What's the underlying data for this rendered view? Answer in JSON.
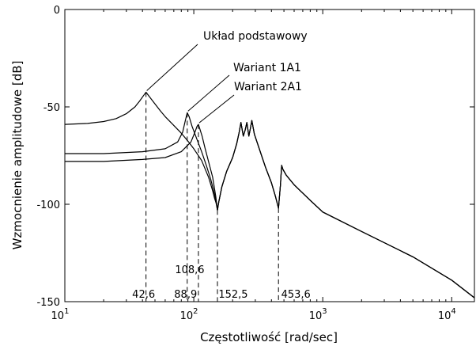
{
  "chart_data": {
    "type": "line",
    "xlabel": "Częstotliwość  [rad/sec]",
    "ylabel": "Wzmocnienie amplitudowe [dB]",
    "xscale": "log",
    "xlim": [
      10,
      15000
    ],
    "ylim": [
      -150,
      0
    ],
    "x_ticks": [
      {
        "value": 10,
        "base": "10",
        "exp": "1"
      },
      {
        "value": 100,
        "base": "10",
        "exp": "2"
      },
      {
        "value": 1000,
        "base": "10",
        "exp": "3"
      },
      {
        "value": 10000,
        "base": "10",
        "exp": "4"
      }
    ],
    "y_ticks": [
      {
        "value": 0,
        "label": "0"
      },
      {
        "value": -50,
        "label": "-50"
      },
      {
        "value": -100,
        "label": "-100"
      },
      {
        "value": -150,
        "label": "-150"
      }
    ],
    "series": [
      {
        "name": "Układ podstawowy",
        "points": [
          [
            10,
            -59
          ],
          [
            15,
            -58.5
          ],
          [
            20,
            -57.5
          ],
          [
            25,
            -56
          ],
          [
            30,
            -53.5
          ],
          [
            35,
            -50
          ],
          [
            38,
            -47
          ],
          [
            41,
            -44
          ],
          [
            42.6,
            -42.5
          ],
          [
            45,
            -44.5
          ],
          [
            50,
            -48.5
          ],
          [
            55,
            -52
          ],
          [
            60,
            -55
          ],
          [
            70,
            -59.5
          ],
          [
            80,
            -63.5
          ],
          [
            90,
            -67.5
          ],
          [
            100,
            -71.5
          ],
          [
            115,
            -77.5
          ],
          [
            130,
            -86
          ],
          [
            140,
            -93
          ],
          [
            145,
            -97
          ],
          [
            150,
            -100
          ],
          [
            152.5,
            -103
          ],
          [
            156,
            -99
          ],
          [
            165,
            -91
          ],
          [
            180,
            -83
          ],
          [
            200,
            -76
          ],
          [
            215,
            -69
          ],
          [
            225,
            -63
          ],
          [
            232,
            -58
          ],
          [
            242,
            -65
          ],
          [
            250,
            -62
          ],
          [
            258,
            -58
          ],
          [
            267,
            -65
          ],
          [
            275,
            -61
          ],
          [
            282,
            -57
          ],
          [
            295,
            -64
          ],
          [
            320,
            -71
          ],
          [
            360,
            -81
          ],
          [
            400,
            -89
          ],
          [
            430,
            -96
          ],
          [
            453.6,
            -102
          ],
          [
            470,
            -90
          ],
          [
            480,
            -80
          ],
          [
            490,
            -82
          ],
          [
            520,
            -85
          ],
          [
            600,
            -90
          ],
          [
            800,
            -98
          ],
          [
            1000,
            -104
          ],
          [
            2000,
            -114
          ],
          [
            5000,
            -127
          ],
          [
            10000,
            -139
          ],
          [
            15000,
            -148
          ]
        ]
      },
      {
        "name": "Wariant 1A1",
        "points": [
          [
            10,
            -74
          ],
          [
            20,
            -74
          ],
          [
            40,
            -73
          ],
          [
            60,
            -71.5
          ],
          [
            75,
            -68
          ],
          [
            82,
            -63
          ],
          [
            86,
            -57
          ],
          [
            88.9,
            -53
          ],
          [
            92,
            -55
          ],
          [
            97,
            -60
          ],
          [
            105,
            -66
          ],
          [
            115,
            -73
          ],
          [
            125,
            -80
          ],
          [
            135,
            -87
          ],
          [
            145,
            -95
          ],
          [
            152.5,
            -103
          ],
          [
            156,
            -99
          ],
          [
            165,
            -91
          ],
          [
            180,
            -83
          ],
          [
            200,
            -76
          ],
          [
            215,
            -69
          ],
          [
            225,
            -63
          ],
          [
            232,
            -58
          ],
          [
            242,
            -65
          ],
          [
            250,
            -62
          ],
          [
            258,
            -58
          ],
          [
            267,
            -65
          ],
          [
            275,
            -61
          ],
          [
            282,
            -57
          ],
          [
            295,
            -64
          ],
          [
            320,
            -71
          ],
          [
            360,
            -81
          ],
          [
            400,
            -89
          ],
          [
            430,
            -96
          ],
          [
            453.6,
            -102
          ],
          [
            470,
            -90
          ],
          [
            480,
            -80
          ],
          [
            490,
            -82
          ],
          [
            520,
            -85
          ],
          [
            600,
            -90
          ],
          [
            800,
            -98
          ],
          [
            1000,
            -104
          ],
          [
            2000,
            -114
          ],
          [
            5000,
            -127
          ],
          [
            10000,
            -139
          ],
          [
            15000,
            -148
          ]
        ]
      },
      {
        "name": "Wariant 2A1",
        "points": [
          [
            10,
            -78
          ],
          [
            20,
            -78
          ],
          [
            40,
            -77
          ],
          [
            60,
            -76
          ],
          [
            80,
            -73
          ],
          [
            95,
            -68
          ],
          [
            102,
            -63
          ],
          [
            106,
            -60
          ],
          [
            108.6,
            -59
          ],
          [
            111,
            -61
          ],
          [
            116,
            -65
          ],
          [
            122,
            -71
          ],
          [
            130,
            -78
          ],
          [
            140,
            -86
          ],
          [
            148,
            -96
          ],
          [
            152.5,
            -103
          ],
          [
            156,
            -99
          ],
          [
            165,
            -91
          ],
          [
            180,
            -83
          ],
          [
            200,
            -76
          ],
          [
            215,
            -69
          ],
          [
            225,
            -63
          ],
          [
            232,
            -58
          ],
          [
            242,
            -65
          ],
          [
            250,
            -62
          ],
          [
            258,
            -58
          ],
          [
            267,
            -65
          ],
          [
            275,
            -61
          ],
          [
            282,
            -57
          ],
          [
            295,
            -64
          ],
          [
            320,
            -71
          ],
          [
            360,
            -81
          ],
          [
            400,
            -89
          ],
          [
            430,
            -96
          ],
          [
            453.6,
            -102
          ],
          [
            470,
            -90
          ],
          [
            480,
            -80
          ],
          [
            490,
            -82
          ],
          [
            520,
            -85
          ],
          [
            600,
            -90
          ],
          [
            800,
            -98
          ],
          [
            1000,
            -104
          ],
          [
            2000,
            -114
          ],
          [
            5000,
            -127
          ],
          [
            10000,
            -139
          ],
          [
            15000,
            -148
          ]
        ]
      }
    ],
    "vlines": [
      {
        "x": 42.6,
        "y_top": -42.5,
        "label": "42,6"
      },
      {
        "x": 88.9,
        "y_top": -53,
        "label": "88,9"
      },
      {
        "x": 108.6,
        "y_top": -59,
        "label": "108,6"
      },
      {
        "x": 152.5,
        "y_top": -103,
        "label": "152,5"
      },
      {
        "x": 453.6,
        "y_top": -102,
        "label": "453,6"
      }
    ],
    "annotations": [
      {
        "text": "Układ podstawowy",
        "x_data": 42.6,
        "y_data": -42.5
      },
      {
        "text": "Wariant 1A1",
        "x_data": 88.9,
        "y_data": -53
      },
      {
        "text": "Wariant 2A1",
        "x_data": 108.6,
        "y_data": -59
      }
    ],
    "grid": false,
    "legend": "none"
  }
}
